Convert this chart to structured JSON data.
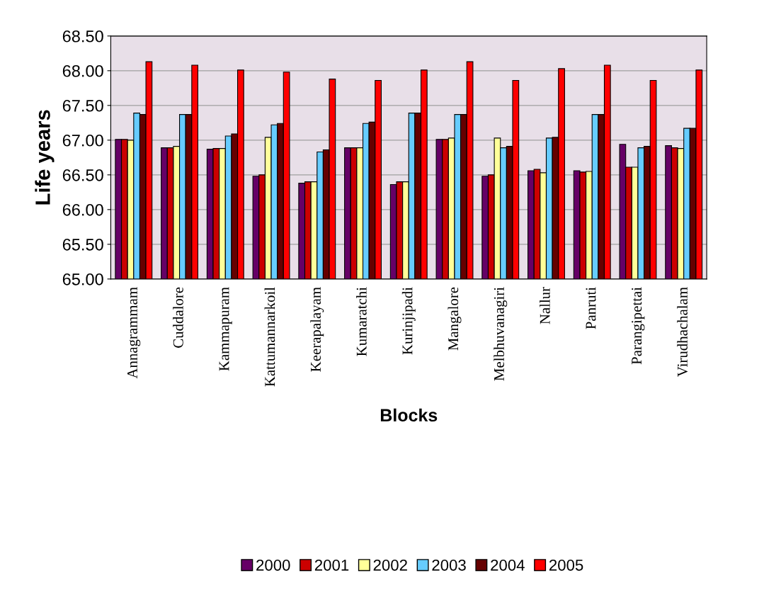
{
  "chart_data": {
    "type": "bar",
    "xlabel": "Blocks",
    "ylabel": "Life years",
    "categories": [
      "Annagrammam",
      "Cuddalore",
      "Kammapuram",
      "Kattumannarkoil",
      "Keerapalayam",
      "Kumaratchi",
      "Kurinjipadi",
      "Mangalore",
      "Melbhuvanagiri",
      "Nallur",
      "Panruti",
      "Parangipettai",
      "Virudhachalam"
    ],
    "series": [
      {
        "name": "2000",
        "color": "#660066",
        "values": [
          67.01,
          66.89,
          66.87,
          66.48,
          66.38,
          66.89,
          66.36,
          67.01,
          66.48,
          66.56,
          66.56,
          66.94,
          66.92
        ]
      },
      {
        "name": "2001",
        "color": "#cc0000",
        "values": [
          67.01,
          66.89,
          66.88,
          66.5,
          66.4,
          66.89,
          66.4,
          67.01,
          66.5,
          66.58,
          66.54,
          66.61,
          66.89
        ]
      },
      {
        "name": "2002",
        "color": "#ffff99",
        "values": [
          67.0,
          66.91,
          66.88,
          67.04,
          66.4,
          66.89,
          66.4,
          67.03,
          67.03,
          66.53,
          66.55,
          66.61,
          66.88
        ]
      },
      {
        "name": "2003",
        "color": "#66ccff",
        "values": [
          67.39,
          67.37,
          67.06,
          67.22,
          66.83,
          67.24,
          67.39,
          67.37,
          66.89,
          67.03,
          67.37,
          66.89,
          67.17
        ]
      },
      {
        "name": "2004",
        "color": "#660000",
        "values": [
          67.37,
          67.37,
          67.09,
          67.24,
          66.86,
          67.26,
          67.39,
          67.37,
          66.91,
          67.04,
          67.37,
          66.91,
          67.17
        ]
      },
      {
        "name": "2005",
        "color": "#ff0000",
        "values": [
          68.13,
          68.08,
          68.01,
          67.98,
          67.88,
          67.86,
          68.01,
          68.13,
          67.86,
          68.03,
          68.08,
          67.86,
          68.01
        ]
      }
    ],
    "ylim": [
      65.0,
      68.5
    ],
    "yticks": [
      {
        "value": 65.0,
        "label": "65.00"
      },
      {
        "value": 65.5,
        "label": "65.50"
      },
      {
        "value": 66.0,
        "label": "66.00"
      },
      {
        "value": 66.5,
        "label": "66.50"
      },
      {
        "value": 67.0,
        "label": "67.00"
      },
      {
        "value": 67.5,
        "label": "67.50"
      },
      {
        "value": 68.0,
        "label": "68.00"
      },
      {
        "value": 68.5,
        "label": "68.50"
      }
    ],
    "grid": "y",
    "legend": "bottom"
  }
}
